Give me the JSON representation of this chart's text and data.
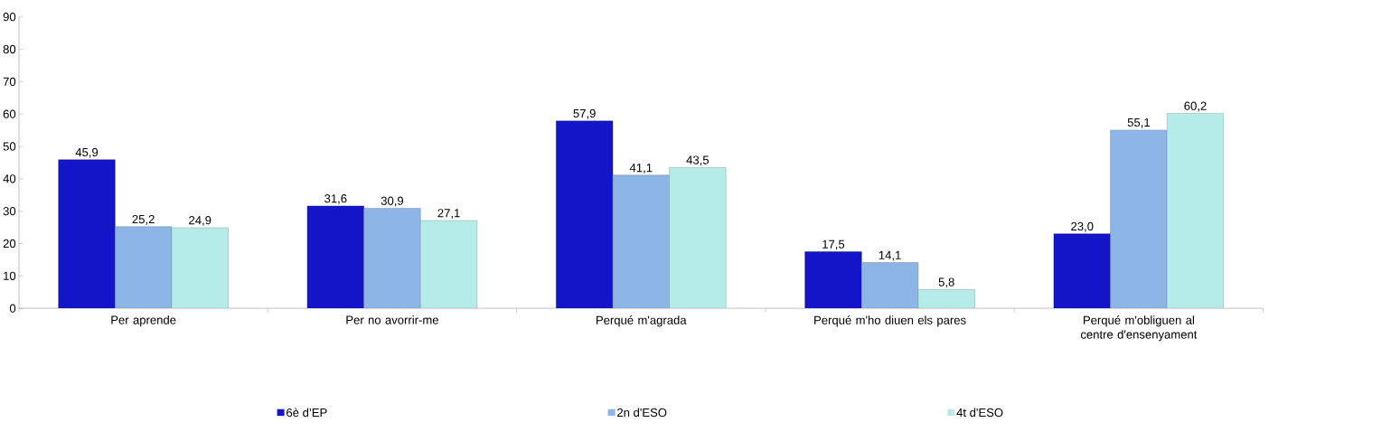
{
  "chart_data": {
    "type": "bar",
    "categories": [
      "Per aprende",
      "Per no avorrir-me",
      "Perqué m'agrada",
      "Perqué m'ho diuen els pares",
      "Perqué m'obliguen al centre d'ensenyament"
    ],
    "series": [
      {
        "name": "6è d’EP",
        "color": "#1414c8",
        "values": [
          45.9,
          31.6,
          57.9,
          17.5,
          23.0
        ],
        "value_labels": [
          "45,9",
          "31,6",
          "57,9",
          "17,5",
          "23,0"
        ]
      },
      {
        "name": "2n d'ESO",
        "color": "#8db6e6",
        "values": [
          25.2,
          30.9,
          41.1,
          14.1,
          55.1
        ],
        "value_labels": [
          "25,2",
          "30,9",
          "41,1",
          "14,1",
          "55,1"
        ]
      },
      {
        "name": "4t d'ESO",
        "color": "#b6ece8",
        "values": [
          24.9,
          27.1,
          43.5,
          5.8,
          60.2
        ],
        "value_labels": [
          "24,9",
          "27,1",
          "43,5",
          "5,8",
          "60,2"
        ]
      }
    ],
    "ylim": [
      0,
      90
    ],
    "yticks": [
      0,
      10,
      20,
      30,
      40,
      50,
      60,
      70,
      80,
      90
    ],
    "grid": false,
    "legend": "bottom"
  }
}
